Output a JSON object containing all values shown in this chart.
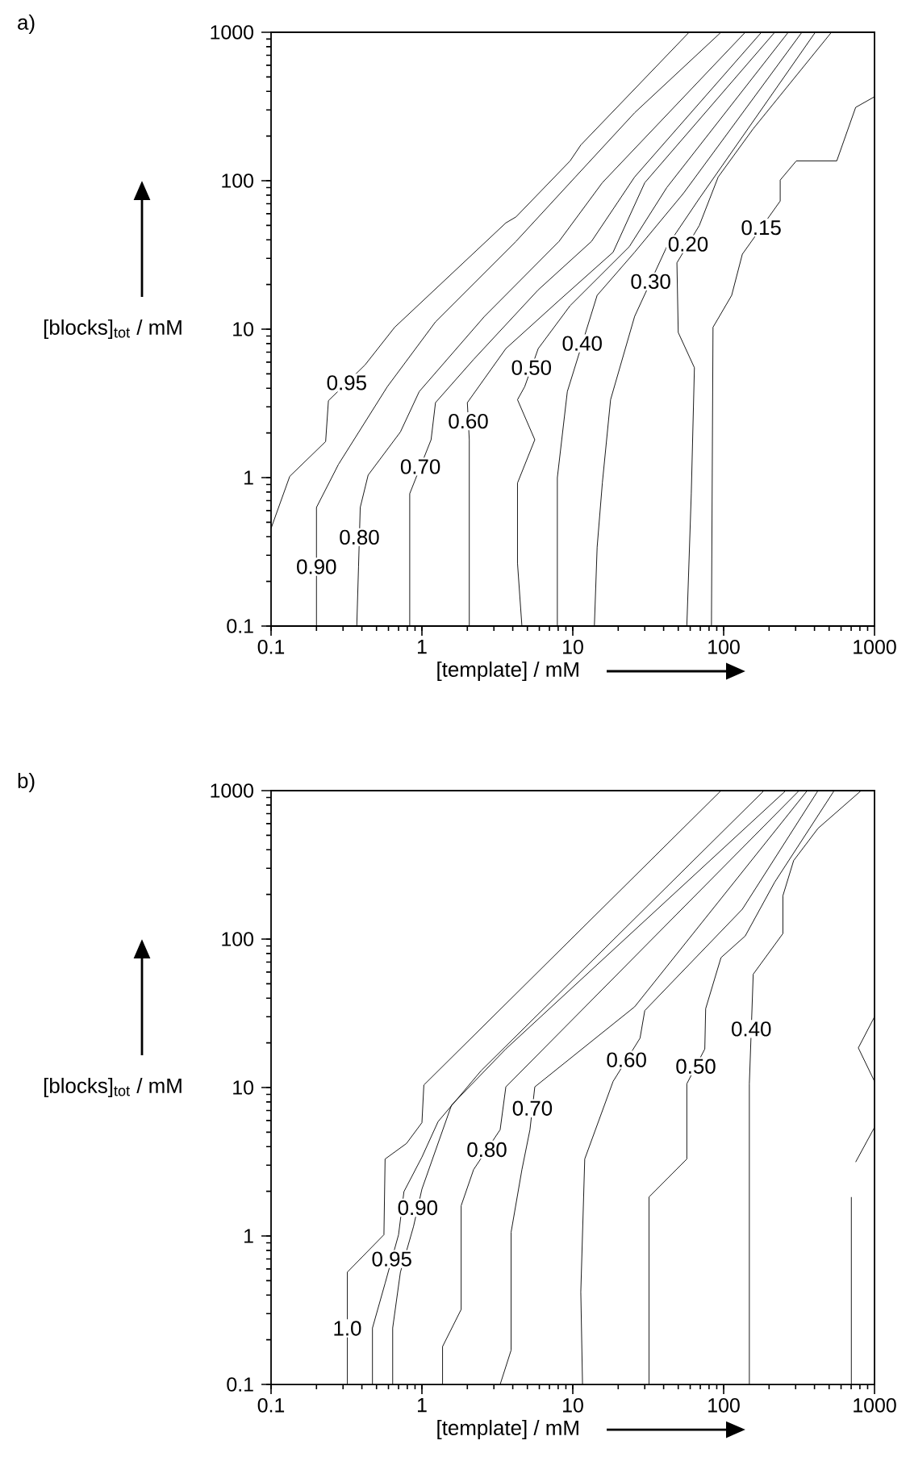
{
  "chart_data": [
    {
      "type": "line",
      "annotations": [
        "a)"
      ],
      "xlabel": "[template] / mM",
      "ylabel": "[blocks]$_{tot}$ / mM",
      "log": "xy",
      "xlim": [
        0.1,
        1000
      ],
      "ylim": [
        0.1,
        1000
      ],
      "xticks": [
        0.1,
        1,
        10,
        100,
        1000
      ],
      "yticks": [
        0.1,
        1,
        10,
        100,
        1000
      ],
      "series": [
        {
          "name": "0.95",
          "color": "#000000",
          "x": [
            0.1,
            0.133,
            0.23,
            0.24,
            0.42,
            0.66,
            3.6,
            4.2,
            9.6,
            11.3,
            59
          ],
          "values": [
            0.455,
            1.02,
            1.75,
            3.3,
            5.75,
            10.3,
            52,
            57,
            136,
            174,
            1000
          ]
        },
        {
          "name": "0.90",
          "color": "#000000",
          "x": [
            0.2,
            0.2,
            0.28,
            0.59,
            1.23,
            4.2,
            10.4,
            25.7,
            96
          ],
          "values": [
            0.1,
            0.63,
            1.23,
            4.1,
            11.2,
            39,
            106,
            287,
            1000
          ]
        },
        {
          "name": "0.80",
          "color": "#000000",
          "x": [
            0.37,
            0.38,
            0.39,
            0.44,
            0.72,
            0.96,
            2.6,
            8.1,
            15.7,
            139
          ],
          "values": [
            0.1,
            0.25,
            0.63,
            1.04,
            2.03,
            3.8,
            12.2,
            39,
            97,
            1000
          ]
        },
        {
          "name": "0.70",
          "color": "#000000",
          "x": [
            0.83,
            0.83,
            1.15,
            1.23,
            2.2,
            5.9,
            13.3,
            25.7,
            178
          ],
          "values": [
            0.1,
            0.78,
            1.8,
            3.2,
            6.25,
            18.4,
            39,
            106,
            1000
          ]
        },
        {
          "name": "0.60",
          "color": "#000000",
          "x": [
            2.06,
            2.06,
            2.0,
            3.6,
            8.1,
            18.5,
            30,
            218
          ],
          "values": [
            0.1,
            1.8,
            3.2,
            7.4,
            15.6,
            33,
            97,
            1000
          ]
        },
        {
          "name": "0.50",
          "color": "#000000",
          "x": [
            4.6,
            4.3,
            4.3,
            5.6,
            4.3,
            4.8,
            5.9,
            9.6,
            23.7,
            42,
            268
          ],
          "values": [
            0.1,
            0.265,
            0.92,
            1.8,
            3.35,
            4.1,
            7.4,
            14.4,
            36,
            90,
            1000
          ]
        },
        {
          "name": "0.40",
          "color": "#000000",
          "x": [
            7.9,
            7.9,
            9.2,
            14.5,
            25.7,
            54,
            330
          ],
          "values": [
            0.1,
            1.0,
            3.8,
            16.9,
            33,
            82,
            1000
          ]
        },
        {
          "name": "0.30",
          "color": "#000000",
          "x": [
            13.9,
            14.5,
            15.7,
            17.8,
            25.7,
            42,
            69,
            405
          ],
          "values": [
            0.1,
            0.34,
            0.92,
            3.35,
            12.2,
            36,
            76,
            1000
          ]
        },
        {
          "name": "0.20",
          "color": "#000000",
          "x": [
            57,
            61,
            64,
            50,
            49,
            69,
            92,
            157,
            518
          ],
          "values": [
            0.1,
            0.78,
            5.5,
            9.5,
            28,
            50,
            106,
            224,
            1000
          ]
        },
        {
          "name": "0.15",
          "color": "#000000",
          "x": [
            83,
            85,
            113,
            133,
            237,
            237,
            303,
            562,
            750,
            1000
          ],
          "values": [
            0.1,
            10.3,
            16.9,
            32,
            73,
            101,
            136,
            136,
            312,
            368
          ]
        }
      ]
    },
    {
      "type": "line",
      "annotations": [
        "b)"
      ],
      "xlabel": "[template] / mM",
      "ylabel": "[blocks]$_{tot}$ / mM",
      "log": "xy",
      "xlim": [
        0.1,
        1000
      ],
      "ylim": [
        0.1,
        1000
      ],
      "xticks": [
        0.1,
        1,
        10,
        100,
        1000
      ],
      "yticks": [
        0.1,
        1,
        10,
        100,
        1000
      ],
      "series": [
        {
          "name": "1.0",
          "color": "#000000",
          "x": [
            0.32,
            0.32,
            0.56,
            0.57,
            0.79,
            1.0,
            1.03,
            96
          ],
          "values": [
            0.1,
            0.57,
            1.02,
            3.3,
            4.2,
            5.8,
            10.4,
            1000
          ]
        },
        {
          "name": "0.95",
          "color": "#000000",
          "x": [
            0.47,
            0.47,
            0.57,
            0.7,
            0.76,
            1.0,
            1.28,
            2.47,
            185
          ],
          "values": [
            0.1,
            0.24,
            0.48,
            1.02,
            1.99,
            3.4,
            5.9,
            13,
            1000
          ]
        },
        {
          "name": "0.90",
          "color": "#000000",
          "x": [
            0.64,
            0.64,
            0.72,
            0.88,
            1.0,
            1.57,
            3.6,
            258
          ],
          "values": [
            0.1,
            0.24,
            0.57,
            1.16,
            2.07,
            7.6,
            18.2,
            1000
          ]
        },
        {
          "name": "0.80",
          "color": "#000000",
          "x": [
            1.37,
            1.37,
            1.82,
            1.82,
            2.2,
            3.3,
            3.6,
            316
          ],
          "values": [
            0.1,
            0.18,
            0.32,
            1.6,
            2.8,
            5.2,
            10.1,
            1000
          ]
        },
        {
          "name": "0.70",
          "color": "#000000",
          "x": [
            3.3,
            3.9,
            3.9,
            4.6,
            5.2,
            5.6,
            25.7,
            358
          ],
          "values": [
            0.1,
            0.17,
            1.06,
            2.8,
            5.2,
            10.1,
            35,
            1000
          ]
        },
        {
          "name": "0.60",
          "color": "#000000",
          "x": [
            11.6,
            11.3,
            12.0,
            18.5,
            27.9,
            30,
            133,
            422
          ],
          "values": [
            0.1,
            0.42,
            3.3,
            11.0,
            21.5,
            33,
            159,
            1000
          ]
        },
        {
          "name": "0.50",
          "color": "#000000",
          "x": [
            32,
            32,
            57,
            57,
            75,
            76,
            96,
            139,
            218,
            540
          ],
          "values": [
            0.1,
            1.83,
            3.3,
            10.6,
            18.2,
            34,
            75,
            105,
            242,
            1000
          ]
        },
        {
          "name": "0.40",
          "color": "#000000",
          "x": [
            148,
            148,
            157,
            247,
            247,
            291,
            422,
            815
          ],
          "values": [
            0.1,
            10.6,
            58,
            109,
            196,
            338,
            557,
            1000
          ]
        },
        {
          "color": "#000000",
          "x": [
            702,
            702
          ],
          "values": [
            0.1,
            1.83
          ]
        },
        {
          "color": "#000000",
          "x": [
            750,
            1000
          ],
          "values": [
            3.15,
            5.4
          ]
        },
        {
          "color": "#000000",
          "x": [
            1000,
            781,
            1000
          ],
          "values": [
            30,
            18.5,
            11.0
          ]
        }
      ]
    }
  ]
}
